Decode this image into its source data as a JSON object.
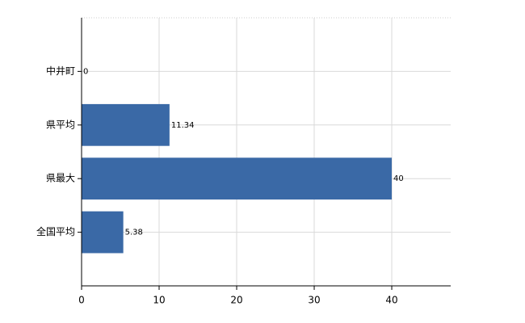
{
  "chart_data": {
    "type": "bar",
    "orientation": "horizontal",
    "categories": [
      "中井町",
      "県平均",
      "県最大",
      "全国平均"
    ],
    "values": [
      0,
      11.34,
      40,
      5.38
    ],
    "color": "#3a69a6",
    "xlim": [
      0,
      47.6
    ],
    "xticks": [
      0,
      10,
      20,
      30,
      40
    ],
    "grid": true
  }
}
